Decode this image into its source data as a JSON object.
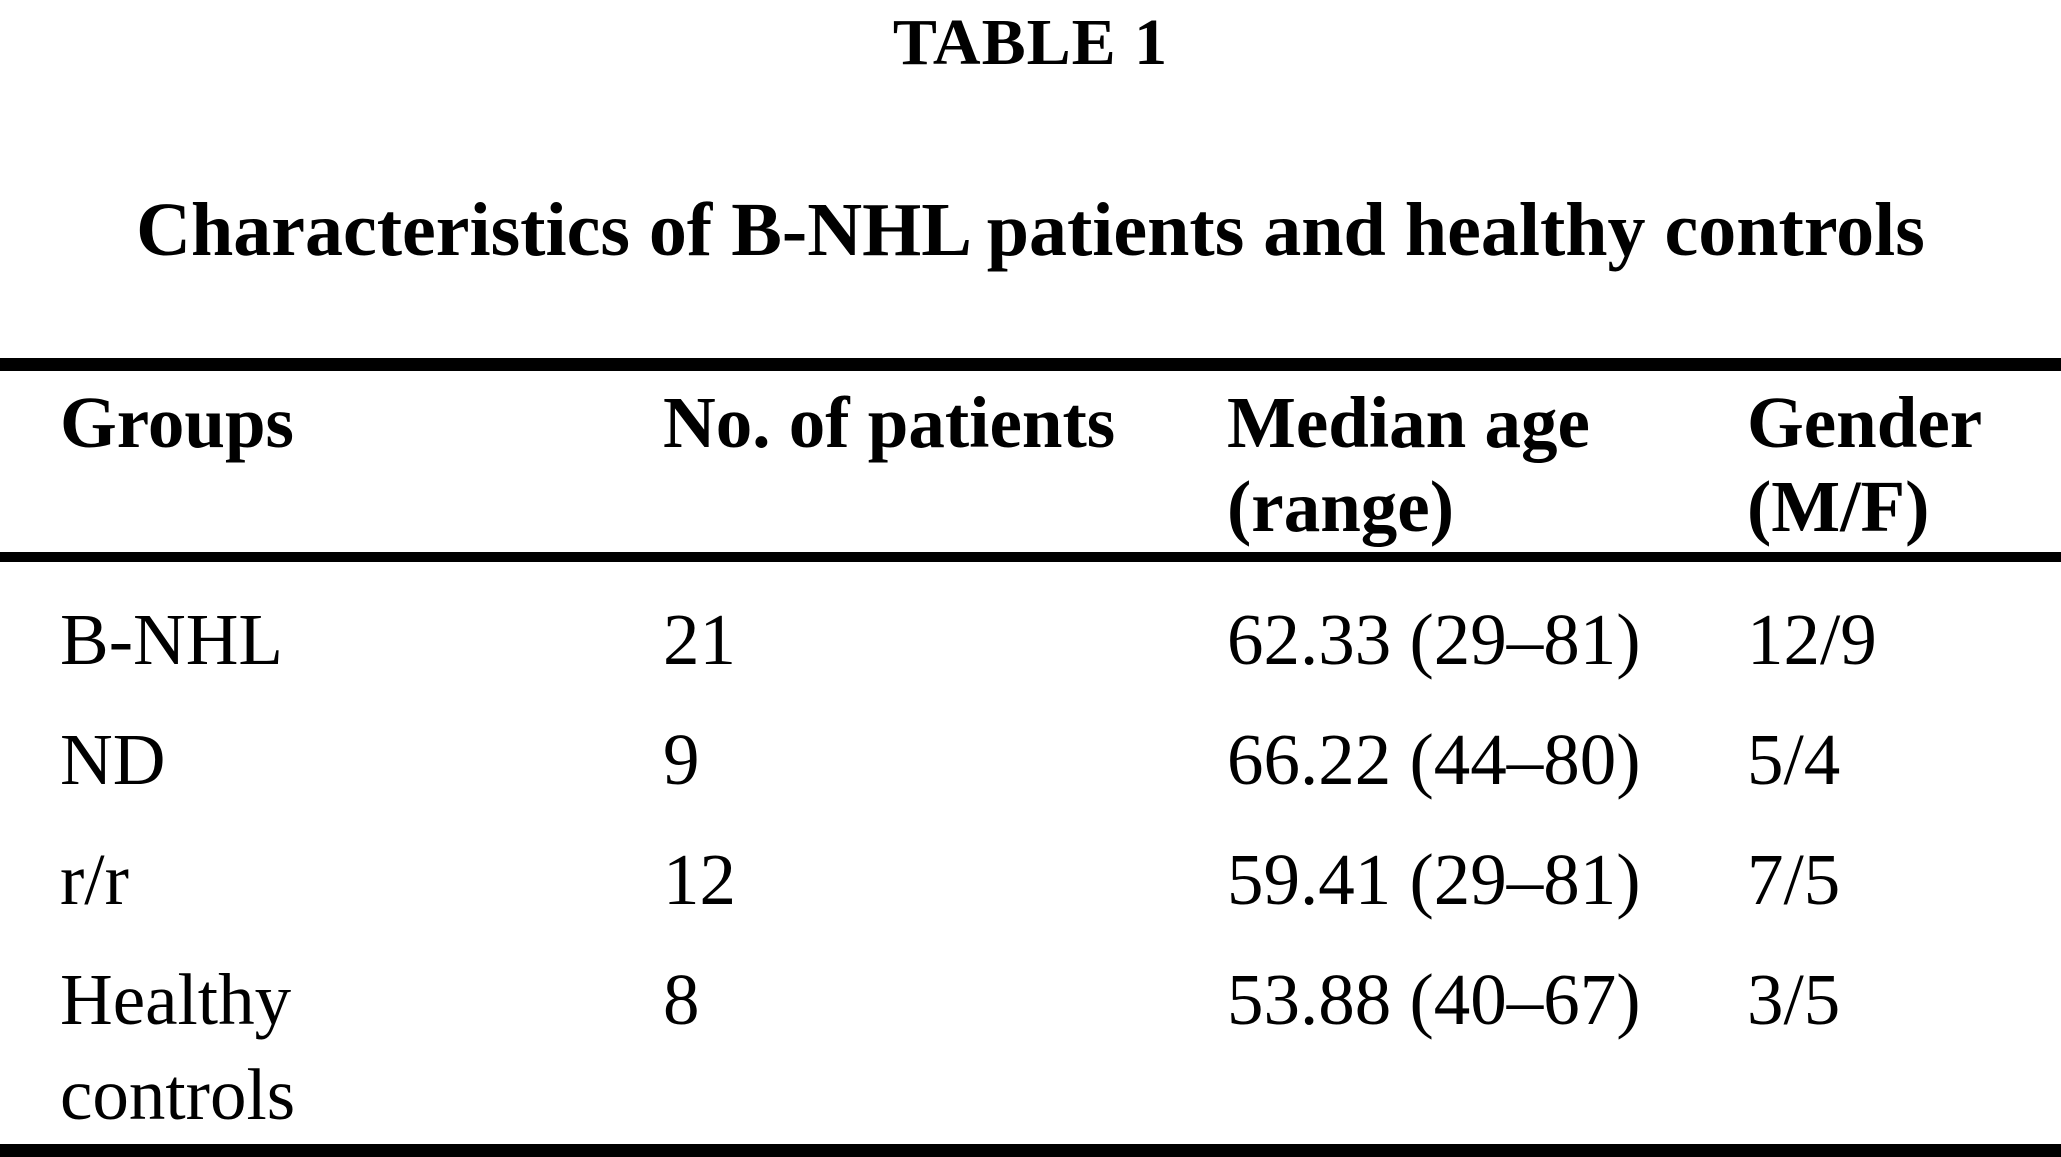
{
  "page": {
    "label": "TABLE 1",
    "caption": "Characteristics of B-NHL patients and healthy controls"
  },
  "table": {
    "columns": [
      {
        "label": "Groups"
      },
      {
        "label": "No. of patients"
      },
      {
        "label": "Median age (range)"
      },
      {
        "label": "Gender (M/F)"
      }
    ],
    "rows": [
      {
        "group": "B-NHL",
        "patients": "21",
        "median_age_range": "62.33 (29–81)",
        "gender_mf": "12/9"
      },
      {
        "group": "ND",
        "patients": "9",
        "median_age_range": "66.22 (44–80)",
        "gender_mf": "5/4"
      },
      {
        "group": "r/r",
        "patients": "12",
        "median_age_range": "59.41 (29–81)",
        "gender_mf": "7/5"
      },
      {
        "group": "Healthy controls",
        "patients": "8",
        "median_age_range": "53.88 (40–67)",
        "gender_mf": "3/5"
      }
    ]
  }
}
